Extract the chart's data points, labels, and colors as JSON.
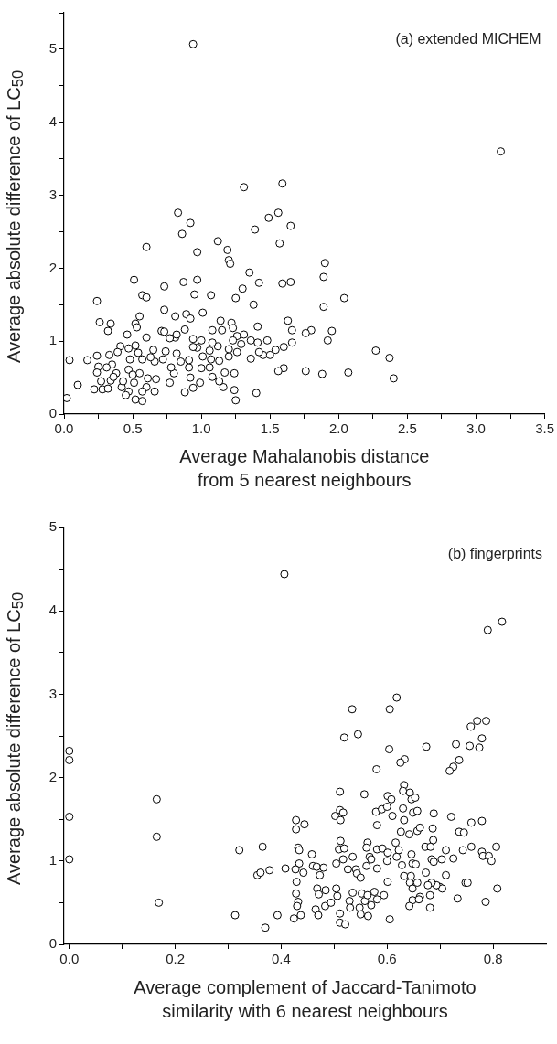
{
  "chart_data": [
    {
      "type": "scatter",
      "ylabel": "Average absolute difference of LC$_{50}$",
      "xlabel": "Average Mahalanobis distance from 5 nearest neighbours",
      "annotations": [
        "(a) extended MICHEM"
      ],
      "marker": "circle",
      "grid": false,
      "color": "#000000",
      "xlim": [
        0,
        3.5
      ],
      "ylim": [
        0,
        5.5
      ],
      "xticks": [
        {
          "value": 0,
          "label": "0.0"
        },
        {
          "value": 0.25,
          "label": null
        },
        {
          "value": 0.5,
          "label": "0.5"
        },
        {
          "value": 0.75,
          "label": null
        },
        {
          "value": 1,
          "label": "1.0"
        },
        {
          "value": 1.25,
          "label": null
        },
        {
          "value": 1.5,
          "label": "1.5"
        },
        {
          "value": 1.75,
          "label": null
        },
        {
          "value": 2,
          "label": "2.0"
        },
        {
          "value": 2.25,
          "label": null
        },
        {
          "value": 2.5,
          "label": "2.5"
        },
        {
          "value": 2.75,
          "label": null
        },
        {
          "value": 3,
          "label": "3.0"
        },
        {
          "value": 3.25,
          "label": null
        },
        {
          "value": 3.5,
          "label": "3.5"
        }
      ],
      "yticks": [
        0,
        {
          "value": 0.5,
          "label": null
        },
        1,
        {
          "value": 1.5,
          "label": null
        },
        2,
        {
          "value": 2.5,
          "label": null
        },
        3,
        {
          "value": 3.5,
          "label": null
        },
        4,
        {
          "value": 4.5,
          "label": null
        },
        5,
        {
          "value": 5.5,
          "label": null
        }
      ],
      "x": [
        0.94,
        3.18,
        1.31,
        1.59,
        0.83,
        0.92,
        1.56,
        1.49,
        1.65,
        1.39,
        0.86,
        1.12,
        1.57,
        0.6,
        1.19,
        0.97,
        1.2,
        1.21,
        1.9,
        1.35,
        1.89,
        0.51,
        0.97,
        0.87,
        1.42,
        1.59,
        1.65,
        0.73,
        1.3,
        0.24,
        0.57,
        0.6,
        0.95,
        1.07,
        1.25,
        1.38,
        2.04,
        1.89,
        0.55,
        0.73,
        0.81,
        0.89,
        0.92,
        1.01,
        0.26,
        0.34,
        0.32,
        0.52,
        0.53,
        1.14,
        1.22,
        1.41,
        1.63,
        1.66,
        1.8,
        1.76,
        1.95,
        1.92,
        0.71,
        0.73,
        0.88,
        1.08,
        1.15,
        1.23,
        0.46,
        0.6,
        0.81,
        0.94,
        1.0,
        1.26,
        1.31,
        1.36,
        1.41,
        1.48,
        1.66,
        2.27,
        2.37,
        2.4,
        2.07,
        1.88,
        1.76,
        1.6,
        1.56,
        1.4,
        1.25,
        1.24,
        1.24,
        1.17,
        1.16,
        1.13,
        1.08,
        1.06,
        1.13,
        1.07,
        1.01,
        1.0,
        0.99,
        0.94,
        0.88,
        0.92,
        0.91,
        0.91,
        0.85,
        0.8,
        0.77,
        0.78,
        0.82,
        0.74,
        0.72,
        0.66,
        0.67,
        0.66,
        0.6,
        0.57,
        0.52,
        0.57,
        0.55,
        0.61,
        0.63,
        0.65,
        0.57,
        0.54,
        0.52,
        0.47,
        0.48,
        0.47,
        0.5,
        0.51,
        0.47,
        0.45,
        0.42,
        0.43,
        0.41,
        0.39,
        0.33,
        0.35,
        0.31,
        0.25,
        0.24,
        0.27,
        0.28,
        0.22,
        0.32,
        0.34,
        0.38,
        0.36,
        0.24,
        0.17,
        0.04,
        0.1,
        0.02,
        1.36,
        1.45,
        1.5,
        1.54,
        1.6,
        1.42,
        1.26,
        1.2,
        1.2,
        1.23,
        1.29,
        1.12,
        1.08,
        1.06,
        0.97,
        0.94,
        0.77,
        0.82
      ],
      "values": [
        5.07,
        3.6,
        3.11,
        3.16,
        2.76,
        2.62,
        2.76,
        2.69,
        2.58,
        2.53,
        2.47,
        2.37,
        2.34,
        2.29,
        2.25,
        2.22,
        2.11,
        2.06,
        2.07,
        1.94,
        1.88,
        1.84,
        1.84,
        1.81,
        1.8,
        1.79,
        1.81,
        1.75,
        1.72,
        1.55,
        1.63,
        1.6,
        1.64,
        1.63,
        1.59,
        1.5,
        1.59,
        1.47,
        1.34,
        1.43,
        1.34,
        1.37,
        1.31,
        1.39,
        1.26,
        1.24,
        1.14,
        1.24,
        1.19,
        1.28,
        1.25,
        1.2,
        1.28,
        1.15,
        1.15,
        1.11,
        1.14,
        1.01,
        1.14,
        1.13,
        1.16,
        1.15,
        1.15,
        1.18,
        1.09,
        1.05,
        1.05,
        1.03,
        1.01,
        1.07,
        1.09,
        1.01,
        0.98,
        1.01,
        0.98,
        0.87,
        0.77,
        0.49,
        0.57,
        0.55,
        0.59,
        0.63,
        0.59,
        0.29,
        0.19,
        0.33,
        0.56,
        0.57,
        0.37,
        0.45,
        0.51,
        0.64,
        0.73,
        0.75,
        0.79,
        0.63,
        0.43,
        0.36,
        0.3,
        0.5,
        0.64,
        0.74,
        0.72,
        0.56,
        0.43,
        0.64,
        0.83,
        0.86,
        0.75,
        0.72,
        0.48,
        0.31,
        0.37,
        0.18,
        0.2,
        0.31,
        0.56,
        0.49,
        0.78,
        0.88,
        0.75,
        0.84,
        0.94,
        0.9,
        0.75,
        0.61,
        0.54,
        0.43,
        0.31,
        0.26,
        0.37,
        0.45,
        0.93,
        0.85,
        0.81,
        0.68,
        0.64,
        0.65,
        0.57,
        0.45,
        0.34,
        0.34,
        0.35,
        0.46,
        0.56,
        0.51,
        0.8,
        0.74,
        0.74,
        0.4,
        0.22,
        0.76,
        0.81,
        0.81,
        0.88,
        0.92,
        0.85,
        0.85,
        0.79,
        0.89,
        1.01,
        0.96,
        0.93,
        0.98,
        0.87,
        0.91,
        0.92,
        1.04,
        1.09
      ]
    },
    {
      "type": "scatter",
      "ylabel": "Average absolute difference of LC$_{50}$",
      "xlabel": "Average complement of Jaccard-Tanimoto similarity with 6 nearest neighbours",
      "annotations": [
        "(b) fingerprints"
      ],
      "marker": "circle",
      "grid": false,
      "color": "#000000",
      "xlim": [
        -0.01,
        0.9
      ],
      "ylim": [
        0,
        5
      ],
      "xticks": [
        {
          "value": 0,
          "label": "0.0"
        },
        {
          "value": 0.1,
          "label": null
        },
        {
          "value": 0.2,
          "label": "0.2"
        },
        {
          "value": 0.3,
          "label": null
        },
        {
          "value": 0.4,
          "label": "0.4"
        },
        {
          "value": 0.5,
          "label": null
        },
        {
          "value": 0.6,
          "label": "0.6"
        },
        {
          "value": 0.7,
          "label": null
        },
        {
          "value": 0.8,
          "label": "0.8"
        }
      ],
      "yticks": [
        0,
        {
          "value": 0.5,
          "label": null
        },
        1,
        {
          "value": 1.5,
          "label": null
        },
        2,
        {
          "value": 2.5,
          "label": null
        },
        3,
        {
          "value": 3.5,
          "label": null
        },
        4,
        {
          "value": 4.5,
          "label": null
        },
        5
      ],
      "x": [
        0.406,
        0.817,
        0.79,
        0.618,
        0.534,
        0.605,
        0.545,
        0.519,
        0.604,
        0.674,
        0.633,
        0.625,
        0.58,
        0.758,
        0.77,
        0.787,
        0.779,
        0.774,
        0.756,
        0.73,
        0.736,
        0.725,
        0.718,
        0,
        0,
        0,
        0,
        0.165,
        0.165,
        0.169,
        0.321,
        0.313,
        0.365,
        0.355,
        0.361,
        0.378,
        0.37,
        0.393,
        0.408,
        0.424,
        0.437,
        0.428,
        0.428,
        0.444,
        0.432,
        0.434,
        0.434,
        0.427,
        0.429,
        0.428,
        0.432,
        0.43,
        0.442,
        0.458,
        0.46,
        0.467,
        0.48,
        0.473,
        0.468,
        0.484,
        0.471,
        0.465,
        0.47,
        0.483,
        0.494,
        0.504,
        0.504,
        0.506,
        0.511,
        0.511,
        0.521,
        0.511,
        0.511,
        0.517,
        0.502,
        0.512,
        0.512,
        0.509,
        0.519,
        0.517,
        0.535,
        0.526,
        0.541,
        0.543,
        0.55,
        0.535,
        0.529,
        0.53,
        0.548,
        0.55,
        0.564,
        0.558,
        0.552,
        0.563,
        0.576,
        0.594,
        0.581,
        0.557,
        0.579,
        0.581,
        0.59,
        0.6,
        0.601,
        0.608,
        0.61,
        0.563,
        0.561,
        0.567,
        0.561,
        0.57,
        0.581,
        0.581,
        0.591,
        0.6,
        0.601,
        0.605,
        0.616,
        0.622,
        0.618,
        0.626,
        0.63,
        0.632,
        0.632,
        0.63,
        0.643,
        0.646,
        0.653,
        0.649,
        0.657,
        0.642,
        0.657,
        0.662,
        0.628,
        0.646,
        0.648,
        0.654,
        0.632,
        0.645,
        0.643,
        0.648,
        0.657,
        0.648,
        0.642,
        0.662,
        0.673,
        0.672,
        0.682,
        0.687,
        0.688,
        0.686,
        0.684,
        0.688,
        0.703,
        0.711,
        0.725,
        0.721,
        0.736,
        0.745,
        0.743,
        0.759,
        0.779,
        0.759,
        0.779,
        0.781,
        0.792,
        0.797,
        0.806,
        0.808,
        0.786,
        0.733,
        0.748,
        0.752,
        0.711,
        0.699,
        0.704,
        0.693,
        0.684,
        0.677,
        0.681,
        0.681,
        0.66,
        0.601,
        0.57
      ],
      "values": [
        4.44,
        3.87,
        3.77,
        2.96,
        2.82,
        2.82,
        2.52,
        2.48,
        2.34,
        2.37,
        2.22,
        2.18,
        2.1,
        2.61,
        2.68,
        2.68,
        2.47,
        2.36,
        2.38,
        2.4,
        2.21,
        2.13,
        2.08,
        2.32,
        2.21,
        1.53,
        1.02,
        1.74,
        1.29,
        0.5,
        1.13,
        0.35,
        1.17,
        0.83,
        0.86,
        0.89,
        0.2,
        0.35,
        0.91,
        0.31,
        0.35,
        1.49,
        1.38,
        1.44,
        1.16,
        1.13,
        0.97,
        0.9,
        0.75,
        0.61,
        0.51,
        0.46,
        0.86,
        1.08,
        0.94,
        0.93,
        0.92,
        0.83,
        0.67,
        0.65,
        0.6,
        0.42,
        0.35,
        0.46,
        0.5,
        0.97,
        0.67,
        0.58,
        0.37,
        0.26,
        0.24,
        1.83,
        1.61,
        1.58,
        1.54,
        1.49,
        1.24,
        1.14,
        1.15,
        1.02,
        1.05,
        0.9,
        0.9,
        0.85,
        0.8,
        0.62,
        0.52,
        0.44,
        0.44,
        0.36,
        0.34,
        0.52,
        0.61,
        0.59,
        0.63,
        0.59,
        0.54,
        1.8,
        1.59,
        1.43,
        1.62,
        1.65,
        1.78,
        1.74,
        1.54,
        1.22,
        1.16,
        1.05,
        0.94,
        1.02,
        1.14,
        0.91,
        1.15,
        1.0,
        0.75,
        0.3,
        1.22,
        1.13,
        1.05,
        1.35,
        1.63,
        1.49,
        1.91,
        1.84,
        1.82,
        1.74,
        1.76,
        1.58,
        1.6,
        1.32,
        1.36,
        1.4,
        0.95,
        1.08,
        0.97,
        0.96,
        0.82,
        0.82,
        0.74,
        0.67,
        0.74,
        0.53,
        0.46,
        0.57,
        0.86,
        1.17,
        1.17,
        1.25,
        1.57,
        1.39,
        1.02,
        0.99,
        1.02,
        1.13,
        1.03,
        1.53,
        1.35,
        1.34,
        1.13,
        1.46,
        1.48,
        1.17,
        1.11,
        1.06,
        1.06,
        1.0,
        1.17,
        0.67,
        0.51,
        0.55,
        0.74,
        0.74,
        0.83,
        0.69,
        0.67,
        0.71,
        0.74,
        0.71,
        0.59,
        0.44,
        0.54,
        1.1,
        0.47
      ]
    }
  ]
}
